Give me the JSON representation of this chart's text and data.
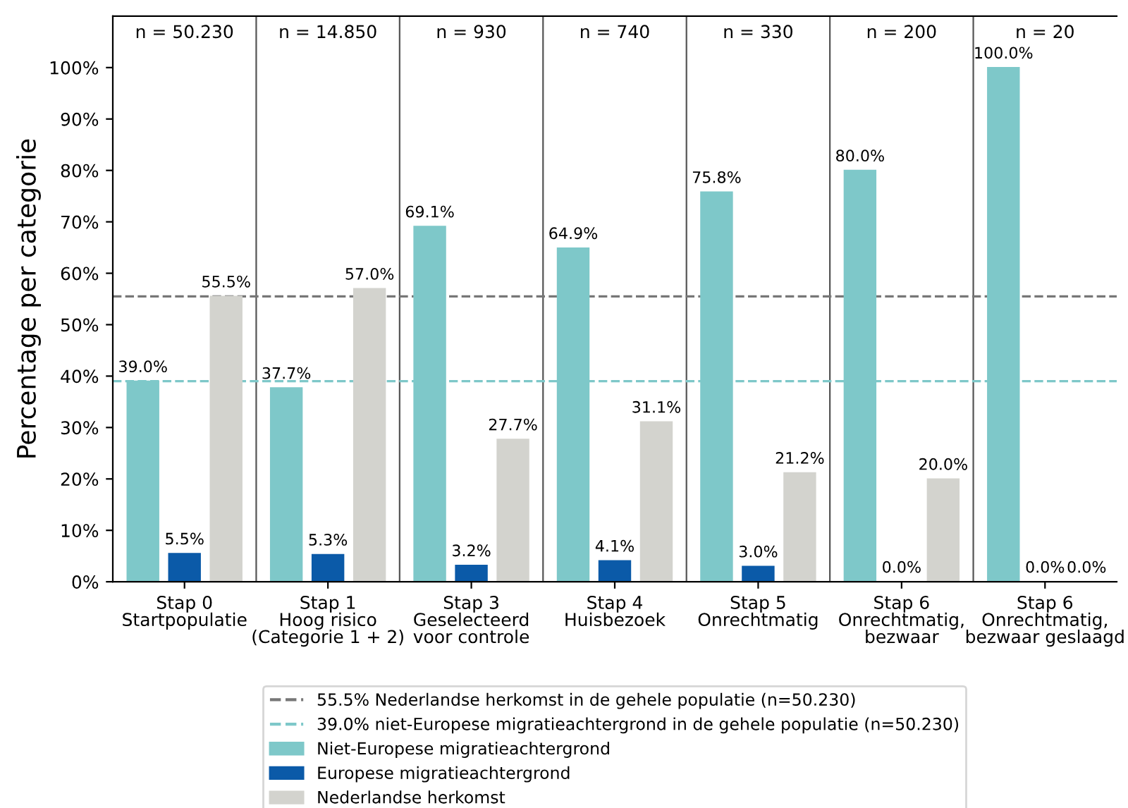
{
  "chart_data": {
    "type": "bar",
    "ylabel": "Percentage per categorie",
    "categories": [
      "Stap 0\nStartpopulatie",
      "Stap 1\nHoog risico\n(Categorie 1 + 2)",
      "Stap 3\nGeselecteerd\nvoor controle",
      "Stap 4\nHuisbezoek",
      "Stap 5\nOnrechtmatig",
      "Stap 6\nOnrechtmatig,\nbezwaar",
      "Stap 6\nOnrechtmatig,\nbezwaar geslaagd"
    ],
    "series": [
      {
        "name": "Niet-Europese migratieachtergrond",
        "color": "#7ec8c9",
        "values": [
          39.0,
          37.7,
          69.1,
          64.9,
          75.8,
          80.0,
          100.0
        ],
        "value_labels": [
          "39.0%",
          "37.7%",
          "69.1%",
          "64.9%",
          "75.8%",
          "80.0%",
          "100.0%"
        ]
      },
      {
        "name": "Europese migratieachtergrond",
        "color": "#0b5aa8",
        "values": [
          5.5,
          5.3,
          3.2,
          4.1,
          3.0,
          0.0,
          0.0
        ],
        "value_labels": [
          "5.5%",
          "5.3%",
          "3.2%",
          "4.1%",
          "3.0%",
          "0.0%",
          "0.0%"
        ]
      },
      {
        "name": "Nederlandse herkomst",
        "color": "#d3d3ce",
        "values": [
          55.5,
          57.0,
          27.7,
          31.1,
          21.2,
          20.0,
          0.0
        ],
        "value_labels": [
          "55.5%",
          "57.0%",
          "27.7%",
          "31.1%",
          "21.2%",
          "20.0%",
          "0.0%"
        ]
      }
    ],
    "annotations": [
      "n = 50.230",
      "n = 14.850",
      "n = 930",
      "n = 740",
      "n = 330",
      "n = 200",
      "n = 20"
    ],
    "ref_lines": [
      {
        "axis": "y",
        "value": 55.5,
        "label": "55.5% Nederlandse herkomst in de gehele populatie (n=50.230)",
        "color": "#777777",
        "line_style": "dashed"
      },
      {
        "axis": "y",
        "value": 39.0,
        "label": "39.0% niet-Europese migratieachtergrond in de gehele populatie (n=50.230)",
        "color": "#7ec8c9",
        "line_style": "dashed"
      }
    ],
    "ylim": [
      0,
      110
    ],
    "yticks": [
      {
        "value": 0,
        "label": "0%"
      },
      {
        "value": 10,
        "label": "10%"
      },
      {
        "value": 20,
        "label": "20%"
      },
      {
        "value": 30,
        "label": "30%"
      },
      {
        "value": 40,
        "label": "40%"
      },
      {
        "value": 50,
        "label": "50%"
      },
      {
        "value": 60,
        "label": "60%"
      },
      {
        "value": 70,
        "label": "70%"
      },
      {
        "value": 80,
        "label": "80%"
      },
      {
        "value": 90,
        "label": "90%"
      },
      {
        "value": 100,
        "label": "100%"
      }
    ],
    "grid": false,
    "legend": "bottom"
  }
}
